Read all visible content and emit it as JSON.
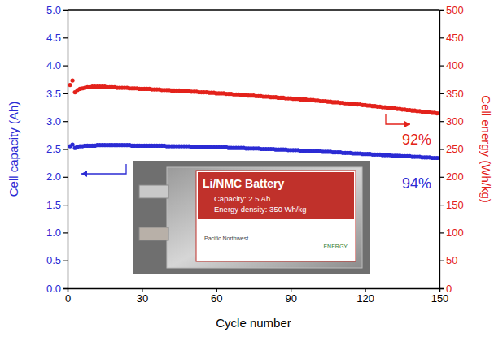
{
  "chart_data": {
    "type": "scatter",
    "x_label": "Cycle number",
    "y_label": "Cell capacity (Ah)",
    "y2_label": "Cell energy (Wh/kg)",
    "x": [
      1,
      2,
      3,
      4,
      5,
      6,
      7,
      8,
      9,
      10,
      11,
      12,
      13,
      14,
      15,
      16,
      17,
      18,
      19,
      20,
      21,
      22,
      23,
      24,
      25,
      26,
      27,
      28,
      29,
      30,
      31,
      32,
      33,
      34,
      35,
      36,
      37,
      38,
      39,
      40,
      41,
      42,
      43,
      44,
      45,
      46,
      47,
      48,
      49,
      50,
      51,
      52,
      53,
      54,
      55,
      56,
      57,
      58,
      59,
      60,
      61,
      62,
      63,
      64,
      65,
      66,
      67,
      68,
      69,
      70,
      71,
      72,
      73,
      74,
      75,
      76,
      77,
      78,
      79,
      80,
      81,
      82,
      83,
      84,
      85,
      86,
      87,
      88,
      89,
      90,
      91,
      92,
      93,
      94,
      95,
      96,
      97,
      98,
      99,
      100,
      101,
      102,
      103,
      104,
      105,
      106,
      107,
      108,
      109,
      110,
      111,
      112,
      113,
      114,
      115,
      116,
      117,
      118,
      119,
      120,
      121,
      122,
      123,
      124,
      125,
      126,
      127,
      128,
      129,
      130,
      131,
      132,
      133,
      134,
      135,
      136,
      137,
      138,
      139,
      140,
      141,
      142,
      143,
      144,
      145,
      146,
      147,
      148,
      149,
      150
    ],
    "series": [
      {
        "color": "#2b2bd4",
        "marker": "circle",
        "values": [
          2.55,
          2.58,
          2.52,
          2.54,
          2.55,
          2.55,
          2.56,
          2.56,
          2.56,
          2.56,
          2.56,
          2.57,
          2.57,
          2.57,
          2.57,
          2.57,
          2.57,
          2.57,
          2.57,
          2.57,
          2.57,
          2.57,
          2.57,
          2.57,
          2.57,
          2.56,
          2.56,
          2.56,
          2.56,
          2.56,
          2.56,
          2.56,
          2.56,
          2.56,
          2.56,
          2.56,
          2.56,
          2.56,
          2.56,
          2.55,
          2.55,
          2.55,
          2.55,
          2.55,
          2.55,
          2.55,
          2.55,
          2.55,
          2.55,
          2.54,
          2.54,
          2.54,
          2.54,
          2.54,
          2.54,
          2.54,
          2.54,
          2.53,
          2.53,
          2.53,
          2.53,
          2.53,
          2.53,
          2.53,
          2.52,
          2.52,
          2.52,
          2.52,
          2.52,
          2.52,
          2.52,
          2.51,
          2.51,
          2.51,
          2.51,
          2.51,
          2.51,
          2.5,
          2.5,
          2.5,
          2.5,
          2.5,
          2.5,
          2.49,
          2.49,
          2.49,
          2.49,
          2.49,
          2.48,
          2.48,
          2.48,
          2.48,
          2.48,
          2.47,
          2.47,
          2.47,
          2.47,
          2.46,
          2.46,
          2.46,
          2.46,
          2.46,
          2.45,
          2.45,
          2.45,
          2.45,
          2.44,
          2.44,
          2.44,
          2.44,
          2.43,
          2.43,
          2.43,
          2.43,
          2.42,
          2.42,
          2.42,
          2.42,
          2.41,
          2.41,
          2.41,
          2.41,
          2.4,
          2.4,
          2.4,
          2.4,
          2.39,
          2.39,
          2.39,
          2.39,
          2.38,
          2.38,
          2.38,
          2.38,
          2.37,
          2.37,
          2.37,
          2.37,
          2.36,
          2.36,
          2.36,
          2.36,
          2.35,
          2.35,
          2.35,
          2.35,
          2.34,
          2.34,
          2.34,
          2.34
        ]
      },
      {
        "color": "#e3221b",
        "marker": "circle",
        "axis": "y2",
        "values": [
          365,
          373,
          352,
          356,
          358,
          359,
          360,
          361,
          361,
          362,
          362,
          362,
          362,
          362,
          362,
          361,
          361,
          361,
          361,
          360,
          360,
          360,
          360,
          360,
          359,
          359,
          359,
          359,
          358,
          358,
          358,
          358,
          358,
          357,
          357,
          357,
          357,
          356,
          356,
          356,
          356,
          355,
          355,
          355,
          355,
          354,
          354,
          354,
          354,
          353,
          353,
          353,
          352,
          352,
          352,
          352,
          351,
          351,
          351,
          350,
          350,
          350,
          350,
          349,
          349,
          349,
          348,
          348,
          348,
          347,
          347,
          347,
          346,
          346,
          346,
          345,
          345,
          345,
          344,
          344,
          344,
          343,
          343,
          343,
          342,
          342,
          342,
          341,
          341,
          341,
          340,
          340,
          340,
          339,
          339,
          339,
          338,
          338,
          338,
          337,
          337,
          336,
          336,
          336,
          335,
          335,
          334,
          334,
          334,
          333,
          333,
          332,
          332,
          331,
          331,
          331,
          330,
          330,
          329,
          329,
          328,
          328,
          327,
          327,
          326,
          326,
          325,
          325,
          324,
          324,
          323,
          323,
          322,
          322,
          321,
          321,
          320,
          320,
          319,
          319,
          318,
          318,
          317,
          317,
          316,
          316,
          315,
          315,
          314,
          314
        ]
      }
    ],
    "annotations": [
      "94%",
      "92%"
    ],
    "inset": {
      "title": "Li/NMC Battery",
      "lines": [
        "Capacity: 2.5 Ah",
        "Energy density: 350 Wh/kg"
      ],
      "logos": [
        "Pacific Northwest",
        "ENERGY"
      ]
    },
    "xlim": [
      0,
      150
    ],
    "xticks": [
      0,
      30,
      60,
      90,
      120,
      150
    ],
    "ylim": [
      0,
      5
    ],
    "yticks": [
      {
        "value": 0,
        "label": "0.0"
      },
      0.5,
      {
        "value": 1,
        "label": "1.0"
      },
      1.5,
      {
        "value": 2,
        "label": "2.0"
      },
      2.5,
      {
        "value": 3,
        "label": "3.0"
      },
      3.5,
      {
        "value": 4,
        "label": "4.0"
      },
      4.5,
      {
        "value": 5,
        "label": "5.0"
      }
    ],
    "y2lim": [
      0,
      500
    ],
    "y2ticks": [
      0,
      50,
      100,
      150,
      200,
      250,
      300,
      350,
      400,
      450,
      500
    ],
    "grid": false
  }
}
